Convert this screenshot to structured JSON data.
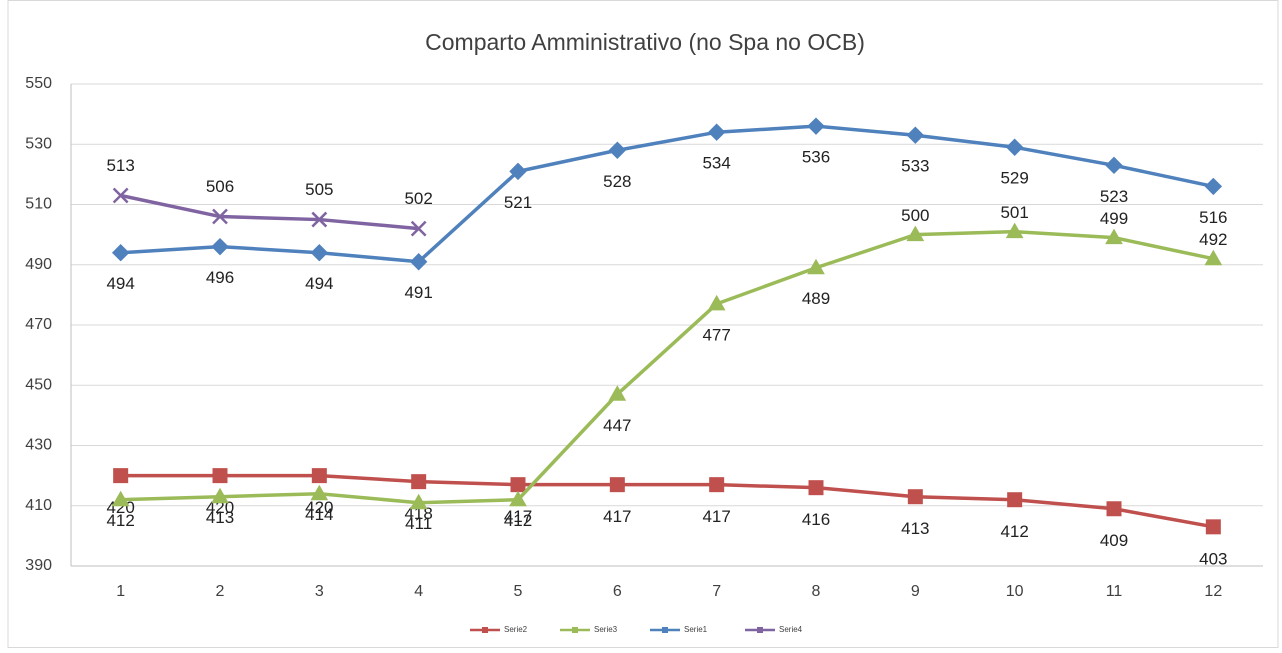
{
  "chart_data": {
    "type": "line",
    "title": "Comparto Amministrativo (no Spa no OCB)",
    "categories": [
      1,
      2,
      3,
      4,
      5,
      6,
      7,
      8,
      9,
      10,
      11,
      12
    ],
    "series": [
      {
        "name": "Serie2",
        "color": "#c0504d",
        "marker": "square",
        "values": [
          420,
          420,
          420,
          418,
          417,
          417,
          417,
          416,
          413,
          412,
          409,
          403
        ]
      },
      {
        "name": "Serie3",
        "color": "#9bbb59",
        "marker": "triangle",
        "values": [
          412,
          413,
          414,
          411,
          412,
          447,
          477,
          489,
          500,
          501,
          499,
          492
        ]
      },
      {
        "name": "Serie1",
        "color": "#4f81bd",
        "marker": "diamond",
        "values": [
          494,
          496,
          494,
          491,
          521,
          528,
          534,
          536,
          533,
          529,
          523,
          516
        ]
      },
      {
        "name": "Serie4",
        "color": "#8064a2",
        "marker": "x",
        "values": [
          513,
          506,
          505,
          502,
          null,
          null,
          null,
          null,
          null,
          null,
          null,
          null
        ]
      }
    ],
    "ylim": [
      390,
      550
    ],
    "yticks": [
      390,
      410,
      430,
      450,
      470,
      490,
      510,
      530,
      550
    ],
    "grid": true,
    "legend": "bottom"
  }
}
